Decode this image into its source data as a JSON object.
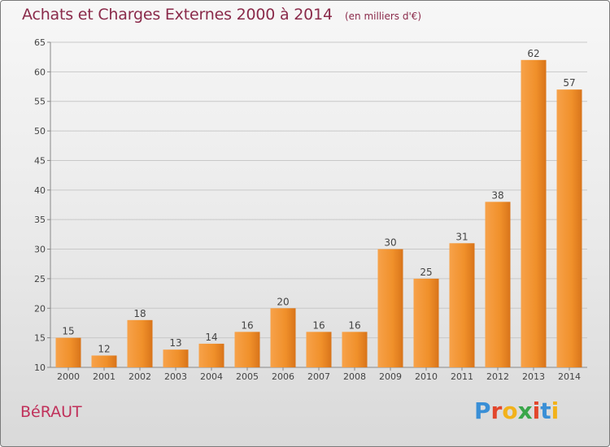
{
  "header": {
    "title": "Achats et Charges Externes 2000 à 2014",
    "unit": "(en milliers d'€)"
  },
  "footer": {
    "town": "BéRAUT",
    "logo_letters": [
      "P",
      "r",
      "o",
      "x",
      "i",
      "t",
      "i"
    ],
    "logo_colors": [
      "#3a8fd6",
      "#e2462c",
      "#f2b21b",
      "#3aa64a",
      "#e2462c",
      "#3a8fd6",
      "#f2b21b"
    ]
  },
  "chart_data": {
    "type": "bar",
    "title": "Achats et Charges Externes 2000 à 2014",
    "subtitle": "(en milliers d'€)",
    "xlabel": "",
    "ylabel": "",
    "categories": [
      "2000",
      "2001",
      "2002",
      "2003",
      "2004",
      "2005",
      "2006",
      "2007",
      "2008",
      "2009",
      "2010",
      "2011",
      "2012",
      "2013",
      "2014"
    ],
    "values": [
      15,
      12,
      18,
      13,
      14,
      16,
      20,
      16,
      16,
      30,
      25,
      31,
      38,
      62,
      57
    ],
    "ylim": [
      10,
      65
    ],
    "yticks": [
      10,
      15,
      20,
      25,
      30,
      35,
      40,
      45,
      50,
      55,
      60,
      65
    ],
    "grid": true,
    "bar_color": "#f0902a"
  }
}
